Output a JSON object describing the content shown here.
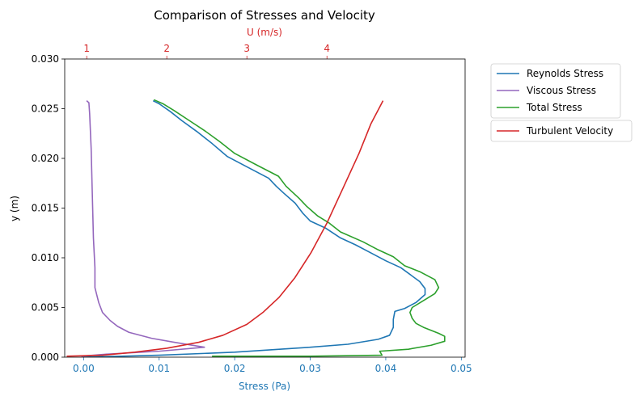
{
  "chart_data": {
    "type": "line",
    "title": "Comparison of Stresses and Velocity",
    "xlabel": "Stress (Pa)",
    "x2label": "U (m/s)",
    "ylabel": "y (m)",
    "xlim": [
      -0.0025,
      0.0505
    ],
    "x2lim": [
      0.725,
      5.725
    ],
    "ylim": [
      0,
      0.03
    ],
    "xticks": [
      "0.00",
      "0.01",
      "0.02",
      "0.03",
      "0.04",
      "0.05"
    ],
    "xtick_values": [
      0,
      0.01,
      0.02,
      0.03,
      0.04,
      0.05
    ],
    "x2ticks": [
      "1",
      "2",
      "3",
      "4"
    ],
    "x2tick_values": [
      1,
      2,
      3,
      4
    ],
    "yticks": [
      "0.000",
      "0.005",
      "0.010",
      "0.015",
      "0.020",
      "0.025",
      "0.030"
    ],
    "ytick_values": [
      0,
      0.005,
      0.01,
      0.015,
      0.02,
      0.025,
      0.03
    ],
    "grid": false,
    "legend_position": "outside-right",
    "colors": {
      "reynolds": "#1f77b4",
      "viscous": "#9467bd",
      "total": "#2ca02c",
      "velocity": "#d62728",
      "x2axis": "#d62728",
      "xaxis": "#1f77b4"
    },
    "series": [
      {
        "name": "Reynolds Stress",
        "axis": "bottom",
        "color": "#1f77b4",
        "points": [
          [
            0,
            0
          ],
          [
            0.01,
            0.0002
          ],
          [
            0.02,
            0.0005
          ],
          [
            0.03,
            0.001
          ],
          [
            0.035,
            0.0013
          ],
          [
            0.039,
            0.0018
          ],
          [
            0.0405,
            0.0022
          ],
          [
            0.041,
            0.003
          ],
          [
            0.041,
            0.0038
          ],
          [
            0.0412,
            0.0046
          ],
          [
            0.0425,
            0.0049
          ],
          [
            0.044,
            0.0055
          ],
          [
            0.0452,
            0.0063
          ],
          [
            0.0452,
            0.0069
          ],
          [
            0.0445,
            0.0076
          ],
          [
            0.042,
            0.009
          ],
          [
            0.04,
            0.0097
          ],
          [
            0.038,
            0.0105
          ],
          [
            0.036,
            0.0113
          ],
          [
            0.034,
            0.012
          ],
          [
            0.032,
            0.013
          ],
          [
            0.03,
            0.0137
          ],
          [
            0.029,
            0.0145
          ],
          [
            0.028,
            0.0155
          ],
          [
            0.0265,
            0.0165
          ],
          [
            0.0255,
            0.0172
          ],
          [
            0.0245,
            0.018
          ],
          [
            0.022,
            0.019
          ],
          [
            0.019,
            0.0202
          ],
          [
            0.017,
            0.0215
          ],
          [
            0.015,
            0.0227
          ],
          [
            0.013,
            0.0238
          ],
          [
            0.0115,
            0.0247
          ],
          [
            0.01,
            0.0255
          ],
          [
            0.0092,
            0.0258
          ]
        ]
      },
      {
        "name": "Viscous Stress",
        "axis": "bottom",
        "color": "#9467bd",
        "points": [
          [
            -0.0003,
            0.0001
          ],
          [
            0.003,
            0.0003
          ],
          [
            0.01,
            0.0006
          ],
          [
            0.016,
            0.001
          ],
          [
            0.012,
            0.0015
          ],
          [
            0.009,
            0.0019
          ],
          [
            0.006,
            0.0025
          ],
          [
            0.0045,
            0.0031
          ],
          [
            0.0035,
            0.0037
          ],
          [
            0.0025,
            0.0045
          ],
          [
            0.002,
            0.0055
          ],
          [
            0.0015,
            0.007
          ],
          [
            0.0015,
            0.009
          ],
          [
            0.0013,
            0.012
          ],
          [
            0.0012,
            0.015
          ],
          [
            0.0011,
            0.018
          ],
          [
            0.001,
            0.021
          ],
          [
            0.0008,
            0.0245
          ],
          [
            0.0007,
            0.0256
          ],
          [
            0.0004,
            0.0258
          ]
        ]
      },
      {
        "name": "Total Stress",
        "axis": "bottom",
        "color": "#2ca02c",
        "points": [
          [
            0.017,
            0.0001
          ],
          [
            0.03,
            0.0001
          ],
          [
            0.0395,
            0.0002
          ],
          [
            0.0392,
            0.0006
          ],
          [
            0.043,
            0.0008
          ],
          [
            0.046,
            0.0012
          ],
          [
            0.0478,
            0.0016
          ],
          [
            0.0478,
            0.0021
          ],
          [
            0.047,
            0.0024
          ],
          [
            0.045,
            0.003
          ],
          [
            0.044,
            0.0034
          ],
          [
            0.0435,
            0.0039
          ],
          [
            0.0432,
            0.0045
          ],
          [
            0.0435,
            0.005
          ],
          [
            0.045,
            0.0057
          ],
          [
            0.0465,
            0.0064
          ],
          [
            0.047,
            0.007
          ],
          [
            0.0465,
            0.0078
          ],
          [
            0.0445,
            0.0086
          ],
          [
            0.0425,
            0.0092
          ],
          [
            0.041,
            0.0101
          ],
          [
            0.039,
            0.0108
          ],
          [
            0.037,
            0.0116
          ],
          [
            0.034,
            0.0126
          ],
          [
            0.0325,
            0.0135
          ],
          [
            0.031,
            0.0142
          ],
          [
            0.0295,
            0.0152
          ],
          [
            0.0285,
            0.016
          ],
          [
            0.0268,
            0.0172
          ],
          [
            0.0258,
            0.0182
          ],
          [
            0.023,
            0.0193
          ],
          [
            0.02,
            0.0205
          ],
          [
            0.018,
            0.0217
          ],
          [
            0.016,
            0.0228
          ],
          [
            0.014,
            0.0238
          ],
          [
            0.012,
            0.0248
          ],
          [
            0.0105,
            0.0255
          ],
          [
            0.0093,
            0.0259
          ]
        ]
      },
      {
        "name": "Turbulent Velocity",
        "axis": "top",
        "color": "#d62728",
        "points": [
          [
            0.75,
            0.0001
          ],
          [
            1.2,
            0.0002
          ],
          [
            1.6,
            0.0005
          ],
          [
            2.0,
            0.0009
          ],
          [
            2.4,
            0.0015
          ],
          [
            2.7,
            0.0022
          ],
          [
            3.0,
            0.0033
          ],
          [
            3.2,
            0.0045
          ],
          [
            3.4,
            0.006
          ],
          [
            3.6,
            0.008
          ],
          [
            3.8,
            0.0105
          ],
          [
            4.0,
            0.0135
          ],
          [
            4.2,
            0.017
          ],
          [
            4.4,
            0.0205
          ],
          [
            4.55,
            0.0235
          ],
          [
            4.7,
            0.0258
          ]
        ]
      }
    ]
  }
}
